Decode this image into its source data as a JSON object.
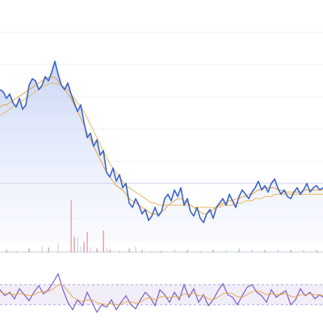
{
  "chart_data": [
    {
      "type": "line",
      "panel": "price",
      "grid": true,
      "x": [
        0,
        4,
        8,
        12,
        16,
        20,
        24,
        28,
        32,
        36,
        40,
        44,
        48,
        52,
        56,
        60,
        64,
        68,
        72,
        76,
        80,
        84,
        88,
        92,
        96,
        100,
        104,
        108,
        112,
        116,
        120,
        124,
        128,
        132,
        136,
        140,
        144,
        148,
        152,
        156,
        160,
        164,
        168,
        172,
        176,
        180,
        184,
        188,
        192,
        196,
        200,
        204,
        208,
        212,
        216,
        220,
        224,
        228,
        232,
        236,
        240,
        244,
        248,
        252,
        256,
        260,
        264,
        268,
        272,
        276,
        280,
        284,
        288,
        292,
        296,
        300,
        304,
        308,
        312,
        316,
        320,
        324,
        328,
        332,
        336,
        340,
        344,
        348,
        352,
        356,
        360,
        364,
        368,
        372,
        376,
        380,
        384,
        388,
        392,
        396,
        400
      ],
      "ylim": [
        0,
        1
      ],
      "series": [
        {
          "role": "price",
          "color": "#3d63c9",
          "values": [
            0.7,
            0.69,
            0.66,
            0.68,
            0.64,
            0.62,
            0.66,
            0.61,
            0.63,
            0.72,
            0.75,
            0.74,
            0.7,
            0.72,
            0.76,
            0.74,
            0.78,
            0.83,
            0.77,
            0.72,
            0.7,
            0.73,
            0.68,
            0.64,
            0.6,
            0.63,
            0.55,
            0.48,
            0.5,
            0.44,
            0.47,
            0.4,
            0.42,
            0.32,
            0.3,
            0.34,
            0.28,
            0.31,
            0.25,
            0.27,
            0.18,
            0.16,
            0.2,
            0.17,
            0.13,
            0.15,
            0.1,
            0.12,
            0.16,
            0.12,
            0.14,
            0.2,
            0.22,
            0.19,
            0.24,
            0.21,
            0.25,
            0.17,
            0.2,
            0.14,
            0.12,
            0.16,
            0.11,
            0.09,
            0.13,
            0.15,
            0.11,
            0.16,
            0.18,
            0.2,
            0.17,
            0.22,
            0.19,
            0.16,
            0.21,
            0.24,
            0.22,
            0.2,
            0.23,
            0.25,
            0.28,
            0.24,
            0.26,
            0.23,
            0.27,
            0.29,
            0.25,
            0.22,
            0.24,
            0.21,
            0.2,
            0.23,
            0.25,
            0.22,
            0.24,
            0.27,
            0.23,
            0.25,
            0.26,
            0.24,
            0.25
          ]
        },
        {
          "role": "moving-average-fast",
          "color": "#e3a332",
          "values": [
            0.62,
            0.63,
            0.63,
            0.64,
            0.65,
            0.66,
            0.67,
            0.68,
            0.69,
            0.7,
            0.71,
            0.72,
            0.73,
            0.74,
            0.75,
            0.755,
            0.76,
            0.755,
            0.74,
            0.72,
            0.7,
            0.68,
            0.66,
            0.63,
            0.6,
            0.57,
            0.54,
            0.5,
            0.47,
            0.44,
            0.41,
            0.38,
            0.35,
            0.32,
            0.3,
            0.28,
            0.26,
            0.25,
            0.24,
            0.22,
            0.2,
            0.19,
            0.18,
            0.17,
            0.16,
            0.15,
            0.14,
            0.13,
            0.13,
            0.13,
            0.14,
            0.15,
            0.17,
            0.18,
            0.19,
            0.2,
            0.2,
            0.19,
            0.18,
            0.17,
            0.16,
            0.15,
            0.14,
            0.13,
            0.13,
            0.14,
            0.15,
            0.16,
            0.17,
            0.18,
            0.18,
            0.19,
            0.19,
            0.2,
            0.2,
            0.21,
            0.21,
            0.22,
            0.22,
            0.23,
            0.24,
            0.24,
            0.25,
            0.25,
            0.25,
            0.25,
            0.24,
            0.24,
            0.23,
            0.23,
            0.23,
            0.23,
            0.23,
            0.23,
            0.24,
            0.24,
            0.24,
            0.24,
            0.24,
            0.24,
            0.24
          ]
        },
        {
          "role": "moving-average-slow",
          "color": "#e8b85a",
          "values": [
            0.58,
            0.59,
            0.6,
            0.61,
            0.62,
            0.63,
            0.64,
            0.65,
            0.66,
            0.67,
            0.68,
            0.69,
            0.7,
            0.71,
            0.72,
            0.725,
            0.73,
            0.73,
            0.725,
            0.72,
            0.71,
            0.7,
            0.68,
            0.66,
            0.64,
            0.62,
            0.6,
            0.57,
            0.54,
            0.51,
            0.48,
            0.45,
            0.42,
            0.39,
            0.36,
            0.34,
            0.32,
            0.3,
            0.28,
            0.26,
            0.25,
            0.24,
            0.23,
            0.22,
            0.21,
            0.2,
            0.19,
            0.18,
            0.18,
            0.17,
            0.17,
            0.17,
            0.17,
            0.17,
            0.17,
            0.17,
            0.17,
            0.17,
            0.17,
            0.17,
            0.16,
            0.16,
            0.16,
            0.16,
            0.16,
            0.16,
            0.16,
            0.16,
            0.16,
            0.17,
            0.17,
            0.17,
            0.17,
            0.18,
            0.18,
            0.18,
            0.19,
            0.19,
            0.19,
            0.2,
            0.2,
            0.2,
            0.21,
            0.21,
            0.21,
            0.22,
            0.22,
            0.22,
            0.22,
            0.22,
            0.22,
            0.22,
            0.22,
            0.22,
            0.22,
            0.22,
            0.22,
            0.22,
            0.22,
            0.22,
            0.22
          ]
        }
      ]
    },
    {
      "type": "bar",
      "panel": "volume",
      "ylim": [
        0,
        1
      ],
      "x": [
        8,
        20,
        36,
        52,
        60,
        72,
        88,
        92,
        96,
        100,
        104,
        108,
        112,
        120,
        128,
        132,
        136,
        148,
        160,
        168,
        176,
        188,
        200,
        216,
        232,
        248,
        264,
        280,
        296,
        312,
        328,
        344,
        360,
        376,
        392
      ],
      "values": [
        0.06,
        0.05,
        0.08,
        0.12,
        0.1,
        0.18,
        1.0,
        0.3,
        0.28,
        0.12,
        0.2,
        0.4,
        0.1,
        0.08,
        0.42,
        0.1,
        0.06,
        0.05,
        0.08,
        0.12,
        0.05,
        0.04,
        0.04,
        0.06,
        0.05,
        0.04,
        0.06,
        0.05,
        0.08,
        0.06,
        0.05,
        0.06,
        0.05,
        0.06,
        0.05
      ],
      "colors": [
        "#d9a0a0",
        "#cfd8ee",
        "#d9a0a0",
        "#cfd8ee",
        "#d9a0a0",
        "#cfd8ee",
        "#e0a3b0",
        "#d9a0a0",
        "#c8d3ea",
        "#cfd8ee",
        "#d9a0a0",
        "#e0a3b0",
        "#cfd8ee",
        "#d9a0a0",
        "#d9a0a0",
        "#cfd8ee",
        "#d9a0a0",
        "#cfd8ee",
        "#d9a0a0",
        "#cfd8ee",
        "#d9a0a0",
        "#cfd8ee",
        "#d9a0a0",
        "#cfd8ee",
        "#d9a0a0",
        "#cfd8ee",
        "#d9a0a0",
        "#cfd8ee",
        "#9fd0b8",
        "#cfd8ee",
        "#d9a0a0",
        "#cfd8ee",
        "#d9a0a0",
        "#cfd8ee",
        "#d9a0a0"
      ]
    },
    {
      "type": "line",
      "panel": "oscillator",
      "ylim": [
        0,
        100
      ],
      "bands": [
        30,
        70
      ],
      "x": [
        0,
        6,
        12,
        18,
        24,
        30,
        36,
        42,
        48,
        54,
        60,
        66,
        72,
        78,
        84,
        90,
        96,
        102,
        108,
        114,
        120,
        126,
        132,
        138,
        144,
        150,
        156,
        162,
        168,
        174,
        180,
        186,
        192,
        198,
        204,
        210,
        216,
        222,
        228,
        234,
        240,
        246,
        252,
        258,
        264,
        270,
        276,
        282,
        288,
        294,
        300,
        306,
        312,
        318,
        324,
        330,
        336,
        342,
        348,
        354,
        360,
        366,
        372,
        378,
        384,
        390,
        396,
        400
      ],
      "series": [
        {
          "role": "oscillator",
          "color": "#7a5fc4",
          "values": [
            60,
            48,
            55,
            42,
            62,
            50,
            38,
            55,
            68,
            52,
            60,
            75,
            92,
            60,
            35,
            20,
            40,
            28,
            55,
            35,
            15,
            30,
            25,
            40,
            20,
            35,
            48,
            30,
            22,
            40,
            55,
            45,
            28,
            60,
            50,
            35,
            55,
            40,
            70,
            45,
            62,
            35,
            50,
            28,
            40,
            58,
            72,
            50,
            45,
            30,
            48,
            65,
            70,
            55,
            48,
            35,
            60,
            45,
            52,
            58,
            30,
            40,
            62,
            48,
            55,
            42,
            50,
            45
          ]
        },
        {
          "role": "signal",
          "color": "#e3a332",
          "values": [
            55,
            53,
            52,
            50,
            52,
            51,
            48,
            50,
            55,
            56,
            57,
            62,
            70,
            68,
            58,
            45,
            40,
            36,
            40,
            40,
            34,
            32,
            30,
            33,
            30,
            31,
            36,
            36,
            33,
            35,
            42,
            44,
            40,
            45,
            47,
            44,
            47,
            45,
            52,
            50,
            54,
            48,
            48,
            42,
            40,
            45,
            52,
            54,
            52,
            46,
            45,
            50,
            56,
            58,
            55,
            50,
            52,
            50,
            50,
            53,
            47,
            45,
            50,
            50,
            52,
            50,
            50,
            48
          ]
        }
      ]
    }
  ]
}
